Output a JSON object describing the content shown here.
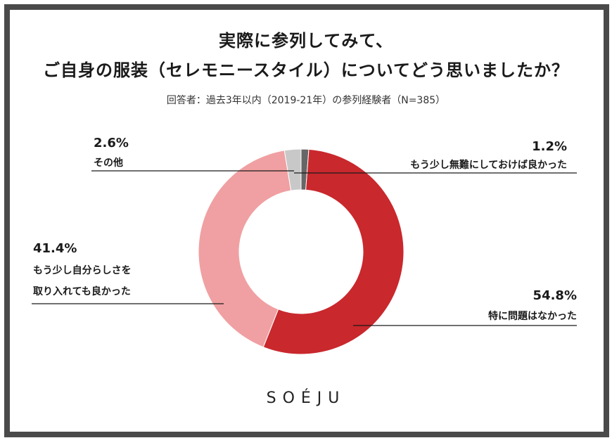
{
  "title_lines": [
    "実際に参列してみて、",
    "ご自身の服装（セレモニースタイル）についてどう思いましたか？"
  ],
  "subtitle": "回答者：過去3年以内（2019-21年）の参列経験者（N=385）",
  "brand": "SOÉJU",
  "chart_data": {
    "type": "pie",
    "title": "実際に参列してみて、ご自身の服装（セレモニースタイル）についてどう思いましたか？",
    "subtitle": "回答者：過去3年以内（2019-21年）の参列経験者（N=385）",
    "unit": "%",
    "slices": [
      {
        "label": "もう少し無難にしておけば良かった",
        "value": 1.2,
        "value_label": "1.2%",
        "color": "#666666"
      },
      {
        "label": "特に問題はなかった",
        "value": 54.8,
        "value_label": "54.8%",
        "color": "#c9282d"
      },
      {
        "label": "もう少し自分らしさを取り入れても良かった",
        "value": 41.4,
        "value_label": "41.4%",
        "color": "#f0a0a2"
      },
      {
        "label": "その他",
        "value": 2.6,
        "value_label": "2.6%",
        "color": "#c8c8c8"
      }
    ]
  }
}
